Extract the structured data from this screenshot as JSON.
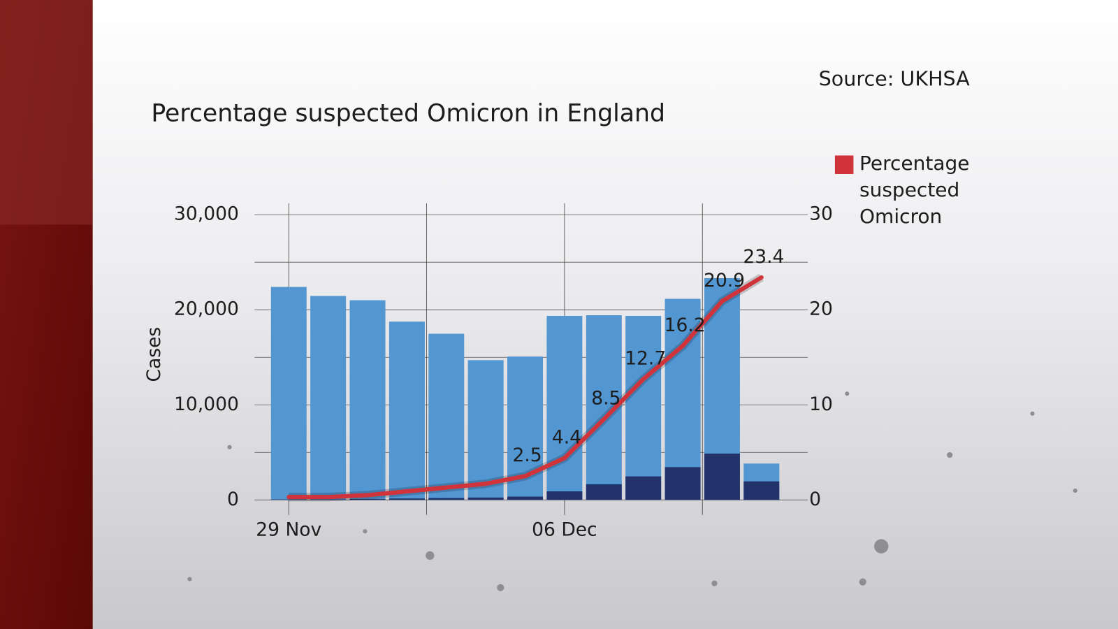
{
  "chart_data": {
    "type": "bar_line",
    "title": "Percentage suspected Omicron in England",
    "source": "Source: UKHSA",
    "y_label": "Cases",
    "categories": [
      "29 Nov",
      null,
      null,
      null,
      null,
      null,
      null,
      "06 Dec",
      null,
      null,
      null,
      null,
      null
    ],
    "xgrid": [
      0,
      3.5,
      7,
      10.5
    ],
    "series": [
      {
        "color": "#5296d2",
        "values": [
          22400,
          21450,
          21000,
          18750,
          17475,
          14700,
          15075,
          19350,
          19425,
          19350,
          21150,
          23325,
          3825
        ]
      },
      {
        "color": "#22336b",
        "values": [
          50,
          50,
          100,
          150,
          200,
          250,
          350,
          900,
          1650,
          2475,
          3450,
          4875,
          1950
        ]
      },
      {
        "name": "Percentage suspected Omicron",
        "color": "#d0343a",
        "axis": "y2",
        "type": "line",
        "values": [
          0.3,
          0.3,
          0.5,
          0.9,
          1.3,
          1.7,
          2.5,
          4.4,
          8.5,
          12.7,
          16.2,
          20.9,
          23.4
        ],
        "value_labels": [
          null,
          null,
          null,
          null,
          null,
          null,
          "2.5",
          "4.4",
          "8.5",
          "12.7",
          "16.2",
          "20.9",
          "23.4"
        ]
      }
    ],
    "ylim": [
      0,
      30000
    ],
    "yticks": [
      0,
      {
        "value": 10000,
        "label": "10,000"
      },
      {
        "value": 20000,
        "label": "20,000"
      },
      {
        "value": 30000,
        "label": "30,000"
      }
    ],
    "minor_yticks": [
      5000,
      15000,
      25000
    ],
    "y2lim": [
      0,
      30
    ],
    "y2ticks": [
      0,
      10,
      20,
      30
    ],
    "grid": true
  }
}
